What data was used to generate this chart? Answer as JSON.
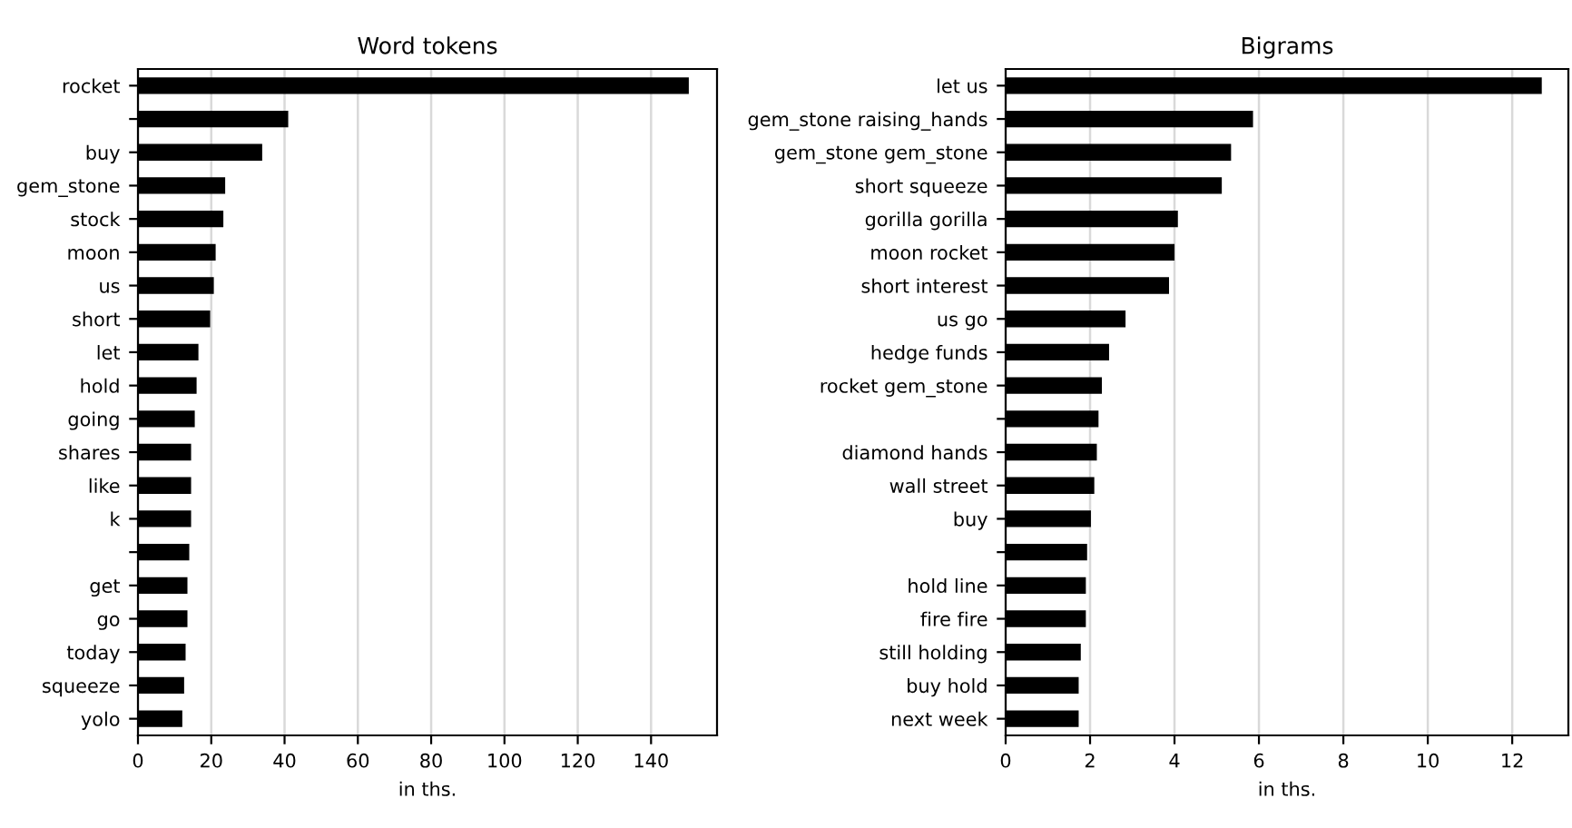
{
  "chart_data": [
    {
      "type": "bar",
      "orientation": "horizontal",
      "title": "Word tokens",
      "xlabel": "in ths.",
      "grid": "x",
      "color": "#000000",
      "categories": [
        "rocket",
        null,
        "buy",
        "gem_stone",
        "stock",
        "moon",
        "us",
        "short",
        "let",
        "hold",
        "going",
        "shares",
        "like",
        "k",
        null,
        "get",
        "go",
        "today",
        "squeeze",
        "yolo"
      ],
      "values": [
        150.3,
        41,
        33.9,
        23.8,
        23.3,
        21.2,
        20.7,
        19.7,
        16.5,
        16,
        15.5,
        14.5,
        14.5,
        14.5,
        14,
        13.5,
        13.5,
        13,
        12.6,
        12.1
      ],
      "xlim": [
        0,
        158
      ],
      "xticks": [
        0,
        20,
        40,
        60,
        80,
        100,
        120,
        140
      ]
    },
    {
      "type": "bar",
      "orientation": "horizontal",
      "title": "Bigrams",
      "xlabel": "in ths.",
      "grid": "x",
      "color": "#000000",
      "categories": [
        "let us",
        "gem_stone raising_hands",
        "gem_stone gem_stone",
        "short squeeze",
        "gorilla gorilla",
        "moon rocket",
        "short interest",
        "us go",
        "hedge funds",
        "rocket gem_stone",
        null,
        "diamond hands",
        "wall street",
        "buy",
        null,
        "hold line",
        "fire fire",
        "still holding",
        "buy hold",
        "next week"
      ],
      "values": [
        12.7,
        5.86,
        5.34,
        5.12,
        4.08,
        4.0,
        3.87,
        2.84,
        2.45,
        2.28,
        2.2,
        2.16,
        2.1,
        2.02,
        1.93,
        1.9,
        1.9,
        1.78,
        1.73,
        1.73
      ],
      "xlim": [
        0,
        13.33
      ],
      "xticks": [
        0,
        2,
        4,
        6,
        8,
        10,
        12
      ]
    }
  ]
}
